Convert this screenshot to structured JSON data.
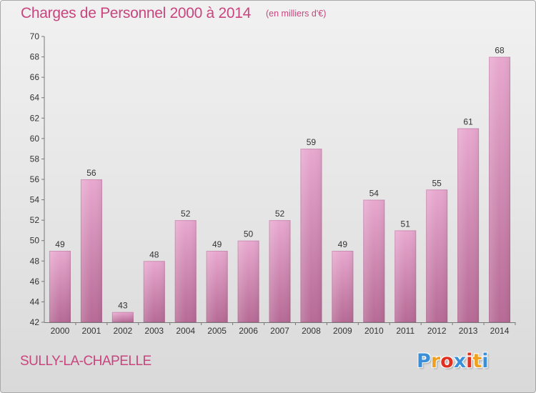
{
  "header": {
    "title": "Charges de Personnel 2000 à 2014",
    "subtitle": "(en milliers d'€)"
  },
  "footer": {
    "commune": "SULLY-LA-CHAPELLE",
    "logo": {
      "letters": [
        "P",
        "r",
        "o",
        "x",
        "i",
        "t",
        "i"
      ],
      "colors": [
        "#3a8fd8",
        "#f0a020",
        "#e03020",
        "#3a8fd8",
        "#e03020",
        "#f0a020",
        "#3a8fd8"
      ]
    }
  },
  "colors": {
    "bar_light": "#e8a8cf",
    "bar_dark": "#b66a95",
    "text": "#333333",
    "accent": "#c8457e"
  },
  "chart_data": {
    "type": "bar",
    "title": "Charges de Personnel 2000 à 2014",
    "subtitle": "(en milliers d'€)",
    "categories": [
      "2000",
      "2001",
      "2002",
      "2003",
      "2004",
      "2005",
      "2006",
      "2007",
      "2008",
      "2009",
      "2010",
      "2011",
      "2012",
      "2013",
      "2014"
    ],
    "values": [
      49,
      56,
      43,
      48,
      52,
      49,
      50,
      52,
      59,
      49,
      54,
      51,
      55,
      61,
      68
    ],
    "ylim": [
      42,
      70
    ],
    "yticks": [
      42,
      44,
      46,
      48,
      50,
      52,
      54,
      56,
      58,
      60,
      62,
      64,
      66,
      68,
      70
    ],
    "grid": false,
    "legend": "none"
  }
}
